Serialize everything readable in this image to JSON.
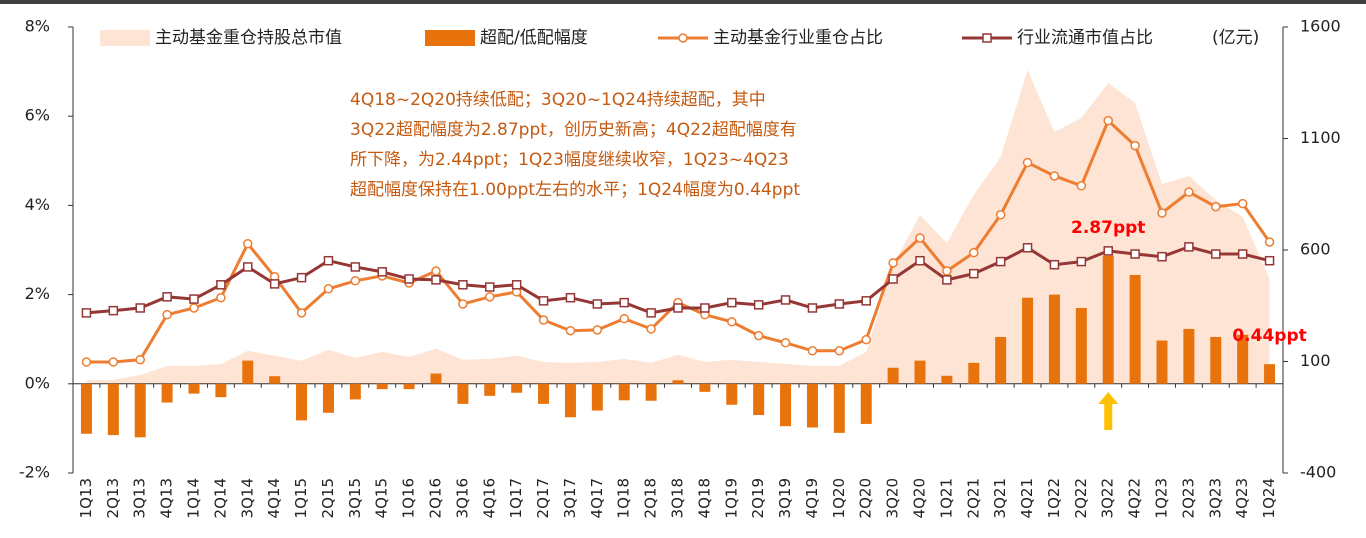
{
  "chart_data": {
    "type": "combo",
    "categories": [
      "1Q13",
      "2Q13",
      "3Q13",
      "4Q13",
      "1Q14",
      "2Q14",
      "3Q14",
      "4Q14",
      "1Q15",
      "2Q15",
      "3Q15",
      "4Q15",
      "1Q16",
      "2Q16",
      "3Q16",
      "4Q16",
      "1Q17",
      "2Q17",
      "3Q17",
      "4Q17",
      "1Q18",
      "2Q18",
      "3Q18",
      "4Q18",
      "1Q19",
      "2Q19",
      "3Q19",
      "4Q19",
      "1Q20",
      "2Q20",
      "3Q20",
      "4Q20",
      "1Q21",
      "2Q21",
      "3Q21",
      "4Q21",
      "1Q22",
      "2Q22",
      "3Q22",
      "4Q22",
      "1Q23",
      "2Q23",
      "3Q23",
      "4Q23",
      "1Q24"
    ],
    "series": [
      {
        "name": "主动基金重仓持股总市值",
        "type": "area",
        "axis": "y2",
        "color": "#fde4d4",
        "values": [
          17,
          17,
          40,
          80,
          80,
          89,
          148,
          126,
          103,
          152,
          117,
          143,
          121,
          157,
          108,
          112,
          126,
          98,
          94,
          98,
          112,
          94,
          130,
          98,
          108,
          98,
          89,
          80,
          80,
          143,
          533,
          757,
          631,
          847,
          1017,
          1407,
          1129,
          1192,
          1349,
          1259,
          896,
          932,
          824,
          748,
          470
        ]
      },
      {
        "name": "超配/低配幅度",
        "type": "bar",
        "color": "#e8720c",
        "values": [
          -1.12,
          -1.15,
          -1.2,
          -0.42,
          -0.22,
          -0.3,
          0.52,
          0.17,
          -0.82,
          -0.65,
          -0.35,
          -0.12,
          -0.12,
          0.23,
          -0.45,
          -0.27,
          -0.2,
          -0.45,
          -0.75,
          -0.6,
          -0.37,
          -0.38,
          0.08,
          -0.18,
          -0.47,
          -0.7,
          -0.95,
          -0.98,
          -1.1,
          -0.9,
          0.36,
          0.52,
          0.18,
          0.47,
          1.05,
          1.93,
          2.0,
          1.7,
          2.87,
          2.44,
          0.97,
          1.23,
          1.05,
          1.1,
          0.44
        ],
        "value_labels": [
          null,
          null,
          null,
          null,
          null,
          null,
          null,
          null,
          null,
          null,
          null,
          null,
          null,
          null,
          null,
          null,
          null,
          null,
          null,
          null,
          null,
          null,
          null,
          null,
          null,
          null,
          null,
          null,
          null,
          null,
          null,
          null,
          null,
          null,
          null,
          null,
          null,
          null,
          "2.87ppt",
          null,
          null,
          null,
          null,
          null,
          "0.44ppt"
        ]
      },
      {
        "name": "主动基金行业重仓占比",
        "type": "line",
        "marker": "circle",
        "color": "#ed7d31",
        "values": [
          0.49,
          0.49,
          0.54,
          1.55,
          1.7,
          1.93,
          3.14,
          2.4,
          1.59,
          2.13,
          2.31,
          2.42,
          2.26,
          2.53,
          1.79,
          1.95,
          2.06,
          1.43,
          1.19,
          1.21,
          1.46,
          1.23,
          1.82,
          1.55,
          1.39,
          1.08,
          0.92,
          0.74,
          0.74,
          0.99,
          2.71,
          3.27,
          2.53,
          2.94,
          3.79,
          4.96,
          4.66,
          4.44,
          5.9,
          5.34,
          3.83,
          4.3,
          3.97,
          4.04,
          3.18
        ]
      },
      {
        "name": "行业流通市值占比",
        "type": "line",
        "marker": "square",
        "color": "#953735",
        "values": [
          1.59,
          1.64,
          1.7,
          1.95,
          1.9,
          2.22,
          2.62,
          2.24,
          2.38,
          2.76,
          2.62,
          2.51,
          2.35,
          2.33,
          2.22,
          2.17,
          2.22,
          1.86,
          1.93,
          1.79,
          1.82,
          1.59,
          1.7,
          1.7,
          1.82,
          1.77,
          1.88,
          1.7,
          1.79,
          1.86,
          2.35,
          2.76,
          2.33,
          2.47,
          2.74,
          3.05,
          2.67,
          2.74,
          2.98,
          2.91,
          2.85,
          3.07,
          2.91,
          2.91,
          2.76
        ]
      }
    ],
    "ylim": [
      -2,
      8
    ],
    "yticks": [
      {
        "value": -2,
        "label": "-2%"
      },
      {
        "value": 0,
        "label": "0%"
      },
      {
        "value": 2,
        "label": "2%"
      },
      {
        "value": 4,
        "label": "4%"
      },
      {
        "value": 6,
        "label": "6%"
      },
      {
        "value": 8,
        "label": "8%"
      }
    ],
    "y2lim": [
      -400,
      1600
    ],
    "y2ticks": [
      -400,
      100,
      600,
      1100,
      1600
    ],
    "y2_label": "(亿元)",
    "annotation": [
      "4Q18~2Q20持续低配；3Q20~1Q24持续超配，其中",
      "3Q22超配幅度为2.87ppt，创历史新高；4Q22超配幅度有",
      "所下降，为2.44ppt；1Q23幅度继续收窄，1Q23~4Q23",
      "超配幅度保持在1.00ppt左右的水平；1Q24幅度为0.44ppt"
    ]
  }
}
